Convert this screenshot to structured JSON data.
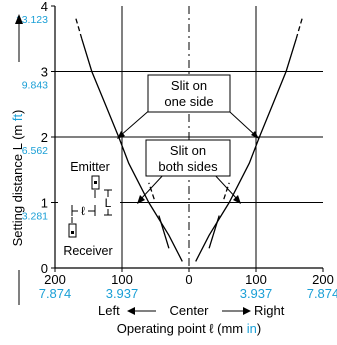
{
  "chart_data": {
    "type": "line",
    "x_ticks": [
      {
        "value": -200,
        "label": "200",
        "inch": "7.874"
      },
      {
        "value": -100,
        "label": "100",
        "inch": "3.937"
      },
      {
        "value": 0,
        "label": "0",
        "inch": ""
      },
      {
        "value": 100,
        "label": "100",
        "inch": "3.937"
      },
      {
        "value": 200,
        "label": "200",
        "inch": "7.874"
      }
    ],
    "y_ticks": [
      {
        "value": 0,
        "label": "0",
        "ft": ""
      },
      {
        "value": 1,
        "label": "1",
        "ft": "3.281"
      },
      {
        "value": 2,
        "label": "2",
        "ft": "6.562"
      },
      {
        "value": 3,
        "label": "3",
        "ft": "9.843"
      },
      {
        "value": 4,
        "label": "4",
        "ft": "13.123"
      }
    ],
    "xlim": [
      -200,
      200
    ],
    "ylim": [
      0,
      4
    ],
    "grid": true,
    "ylabel": "Setting distance L (m ft)",
    "ylabel_main": "Setting distance L (m ",
    "ylabel_unit": "ft",
    "ylabel_close": ")",
    "xlabel_direction": {
      "left": "Left",
      "center": "Center",
      "right": "Right"
    },
    "xlabel": "Operating point ℓ (mm in)",
    "xlabel_main": "Operating point ℓ (mm ",
    "xlabel_unit": "in",
    "xlabel_close": ")",
    "series": [
      {
        "name": "Slit on one side",
        "left": [
          [
            -10,
            0.1
          ],
          [
            -30,
            0.5
          ],
          [
            -60,
            1.0
          ],
          [
            -90,
            1.6
          ],
          [
            -105,
            2.0
          ],
          [
            -125,
            2.5
          ],
          [
            -145,
            3.0
          ],
          [
            -160,
            3.5
          ],
          [
            -170,
            3.85
          ]
        ],
        "right": [
          [
            10,
            0.1
          ],
          [
            30,
            0.5
          ],
          [
            60,
            1.0
          ],
          [
            90,
            1.6
          ],
          [
            105,
            2.0
          ],
          [
            125,
            2.5
          ],
          [
            145,
            3.0
          ],
          [
            160,
            3.5
          ],
          [
            170,
            3.85
          ]
        ],
        "dashed_from_y": 3.5
      },
      {
        "name": "Slit on both sides",
        "left": [
          [
            -30,
            0.3
          ],
          [
            -45,
            0.8
          ],
          [
            -52,
            1.05
          ],
          [
            -60,
            1.3
          ]
        ],
        "right": [
          [
            30,
            0.3
          ],
          [
            45,
            0.8
          ],
          [
            52,
            1.05
          ],
          [
            60,
            1.3
          ]
        ],
        "dashed_from_y": 1.0
      }
    ],
    "callouts": [
      {
        "line1": "Slit on",
        "line2": "one side"
      },
      {
        "line1": "Slit on",
        "line2": "both sides"
      }
    ],
    "inset": {
      "emitter": "Emitter",
      "receiver": "Receiver",
      "l_symbol": "ℓ",
      "L_symbol": "L"
    },
    "colors": {
      "accent": "#1a9fd6",
      "line": "#000000",
      "grid": "#000000"
    }
  }
}
